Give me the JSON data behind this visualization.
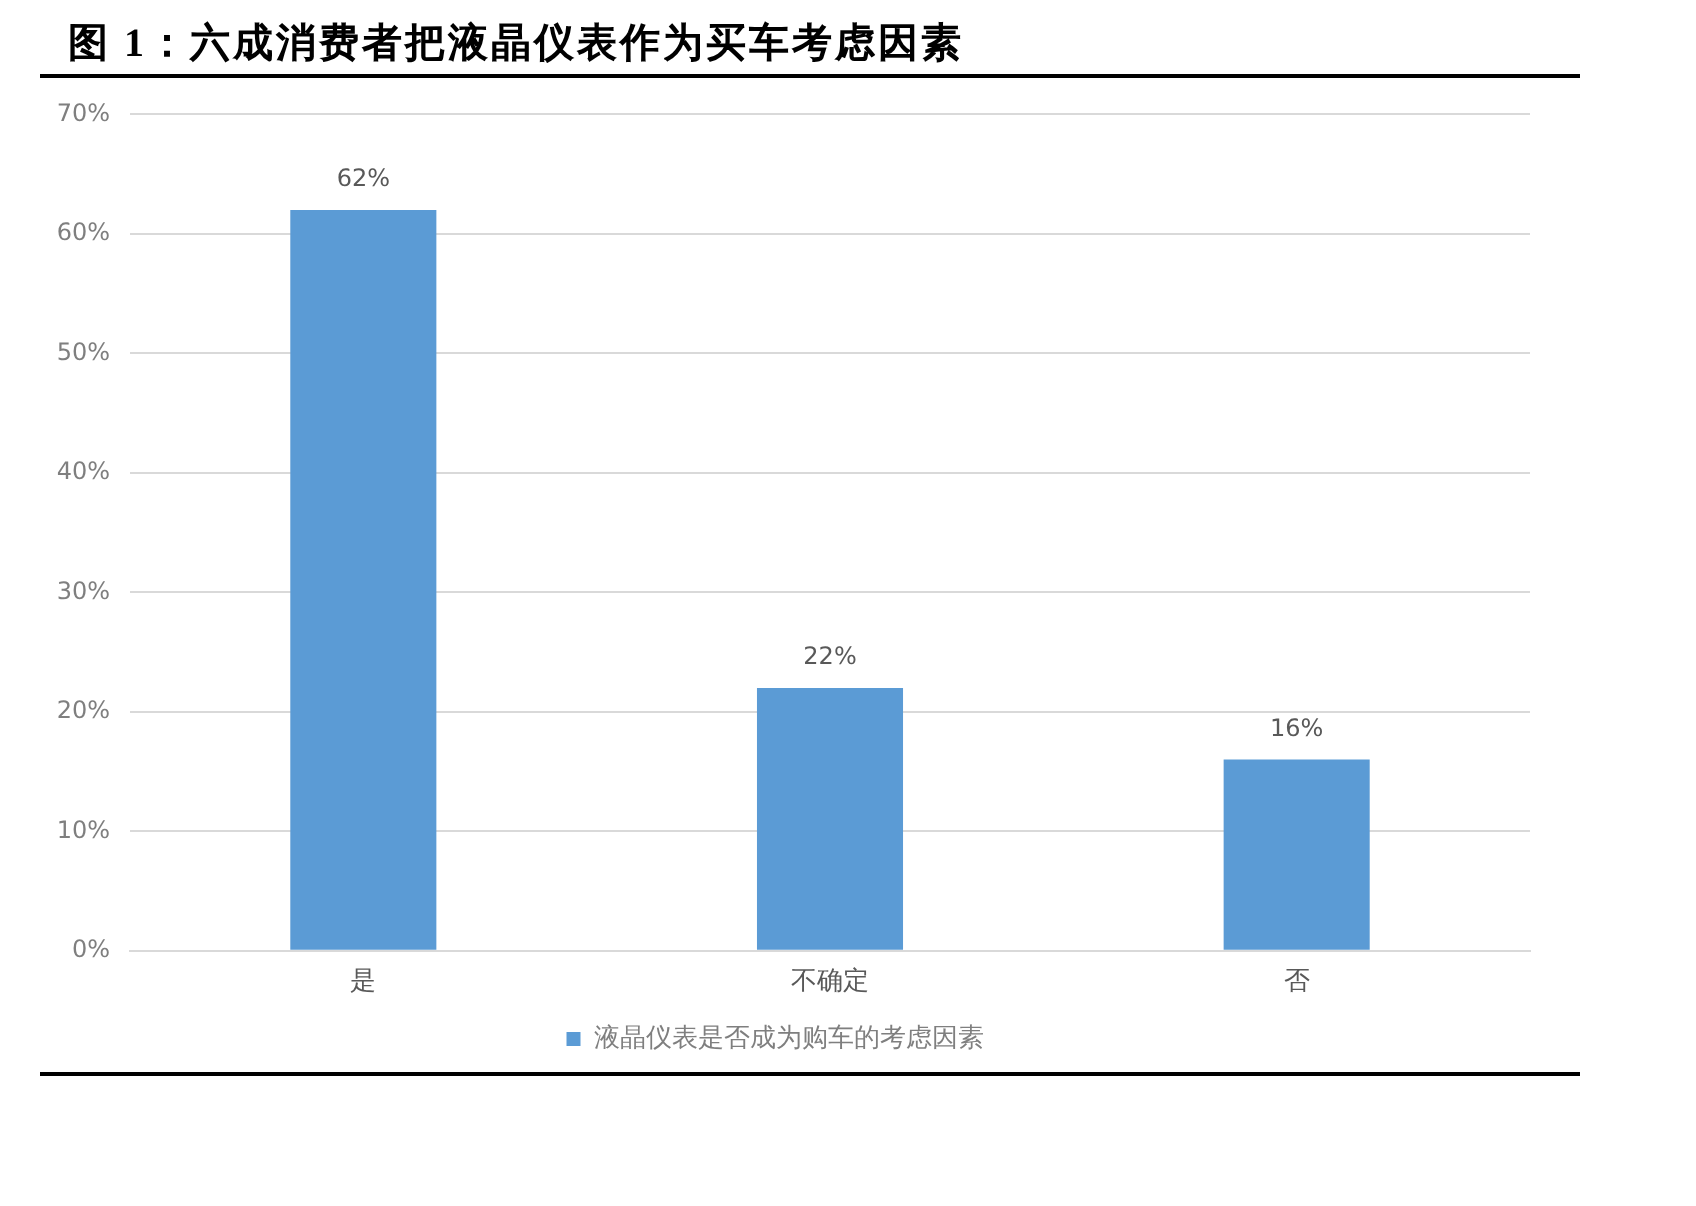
{
  "chart_data": {
    "type": "bar",
    "title": "图 1：六成消费者把液晶仪表作为买车考虑因素",
    "categories": [
      "是",
      "不确定",
      "否"
    ],
    "series": [
      {
        "name": "液晶仪表是否成为购车的考虑因素",
        "color": "#5b9bd5",
        "values": [
          62,
          22,
          16
        ],
        "value_labels": [
          "62%",
          "22%",
          "16%"
        ]
      }
    ],
    "ylim": [
      0,
      70
    ],
    "yticks": [
      {
        "value": 0,
        "label": "0%"
      },
      {
        "value": 10,
        "label": "10%"
      },
      {
        "value": 20,
        "label": "20%"
      },
      {
        "value": 30,
        "label": "30%"
      },
      {
        "value": 40,
        "label": "40%"
      },
      {
        "value": 50,
        "label": "50%"
      },
      {
        "value": 60,
        "label": "60%"
      },
      {
        "value": 70,
        "label": "70%"
      }
    ],
    "grid": "y",
    "legend": "bottom"
  }
}
